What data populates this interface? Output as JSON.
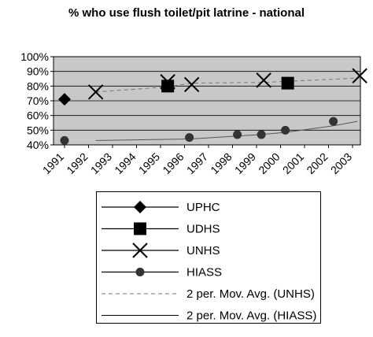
{
  "chart_data": {
    "type": "line",
    "title": "% who use flush toilet/pit latrine - national",
    "x": [
      "1991",
      "1992",
      "1993",
      "1994",
      "1995",
      "1996",
      "1997",
      "1998",
      "1999",
      "2000",
      "2001",
      "2002",
      "2003"
    ],
    "y_ticks": [
      "40%",
      "50%",
      "60%",
      "70%",
      "80%",
      "90%",
      "100%"
    ],
    "ylim": [
      40,
      100
    ],
    "grid": "horizontal",
    "legend_placement": "below",
    "colors": {
      "plot_bg": "#c8c8c8",
      "frame": "#000000"
    },
    "series": [
      {
        "name": "UPHC",
        "marker": "diamond",
        "points": [
          {
            "x": 1991,
            "y": 71
          }
        ]
      },
      {
        "name": "UDHS",
        "marker": "square",
        "points": [
          {
            "x": 1995.3,
            "y": 80
          },
          {
            "x": 2000.3,
            "y": 82
          }
        ]
      },
      {
        "name": "UNHS",
        "marker": "x",
        "points": [
          {
            "x": 1992.3,
            "y": 76
          },
          {
            "x": 1995.3,
            "y": 83
          },
          {
            "x": 1996.3,
            "y": 81
          },
          {
            "x": 1999.3,
            "y": 84
          },
          {
            "x": 2003.3,
            "y": 87
          }
        ]
      },
      {
        "name": "HIASS",
        "marker": "circle",
        "points": [
          {
            "x": 1991,
            "y": 43
          },
          {
            "x": 1996.2,
            "y": 45
          },
          {
            "x": 1998.2,
            "y": 47
          },
          {
            "x": 1999.2,
            "y": 47
          },
          {
            "x": 2000.2,
            "y": 50
          },
          {
            "x": 2002.2,
            "y": 56
          }
        ]
      },
      {
        "name": "2 per. Mov. Avg. (UNHS)",
        "style": "dashed",
        "points": [
          {
            "x": 1992.3,
            "y": 76
          },
          {
            "x": 1995.3,
            "y": 79.5
          },
          {
            "x": 1996.3,
            "y": 82
          },
          {
            "x": 1999.3,
            "y": 82.5
          },
          {
            "x": 2003.3,
            "y": 85.5
          }
        ]
      },
      {
        "name": "2 per. Mov. Avg. (HIASS)",
        "style": "solid-thin",
        "points": [
          {
            "x": 1992.3,
            "y": 43
          },
          {
            "x": 1996.2,
            "y": 44
          },
          {
            "x": 1998.2,
            "y": 46
          },
          {
            "x": 1999.2,
            "y": 47
          },
          {
            "x": 2000.2,
            "y": 48.5
          },
          {
            "x": 2002.2,
            "y": 53
          },
          {
            "x": 2003.2,
            "y": 56
          }
        ]
      }
    ]
  }
}
